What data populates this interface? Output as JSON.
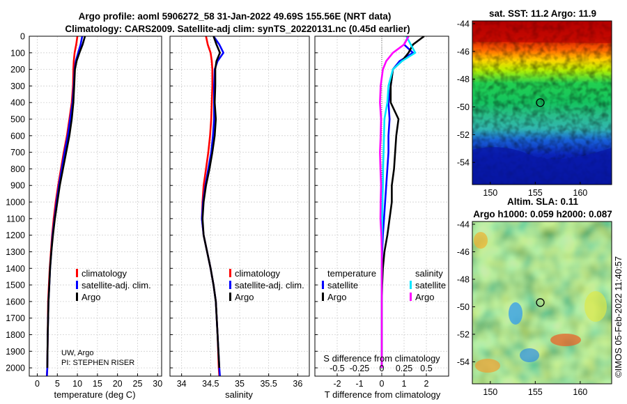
{
  "figure": {
    "title_line1": "Argo profile: aoml 5906272_58 31-Jan-2022 49.69S 155.56E (NRT data)",
    "title_line2": "Climatology: CARS2009. Satellite-adj clim: synTS_20220131.nc (0.45d earlier)",
    "institution": "UW, Argo",
    "pi": "PI: STEPHEN RISER",
    "credit": "©IMOS 05-Feb-2022 11:40:57"
  },
  "colors": {
    "climatology": "#ff0000",
    "satellite": "#0000ff",
    "argo": "#000000",
    "diff_temp_sat": "#0000ff",
    "diff_temp_argo": "#000000",
    "diff_sal_sat": "#00e5ff",
    "diff_sal_argo": "#ff00ff"
  },
  "chart_data": [
    {
      "type": "line",
      "id": "temperature",
      "xlabel": "temperature (deg C)",
      "ylabel": "depth",
      "xlim": [
        -2,
        31
      ],
      "ylim": [
        2050,
        0
      ],
      "xticks": [
        0,
        5,
        10,
        15,
        20,
        25,
        30
      ],
      "yticks": [
        0,
        100,
        200,
        300,
        400,
        500,
        600,
        700,
        800,
        900,
        1000,
        1100,
        1200,
        1300,
        1400,
        1500,
        1600,
        1700,
        1800,
        1900,
        2000
      ],
      "legend": [
        "climatology",
        "satellite-adj. clim.",
        "Argo"
      ],
      "series": [
        {
          "name": "climatology",
          "color": "#ff0000",
          "x": [
            10.0,
            9.7,
            9.3,
            9.1,
            9.0,
            8.9,
            8.6,
            8.0,
            7.4,
            6.6,
            5.9,
            5.2,
            4.6,
            4.1,
            3.7,
            3.4,
            3.1,
            2.9,
            2.7,
            2.6,
            2.5,
            2.4
          ],
          "y": [
            0,
            50,
            100,
            150,
            200,
            300,
            400,
            500,
            600,
            700,
            800,
            900,
            1000,
            1100,
            1200,
            1300,
            1400,
            1500,
            1600,
            1800,
            2000,
            2050
          ]
        },
        {
          "name": "satellite-adj. clim.",
          "color": "#0000ff",
          "x": [
            11.2,
            10.8,
            10.2,
            9.6,
            9.3,
            9.1,
            8.8,
            8.2,
            7.6,
            6.8,
            6.1,
            5.4,
            4.8,
            4.3,
            3.8,
            3.5,
            3.2,
            3.0,
            2.8,
            2.6,
            2.5,
            2.4
          ],
          "y": [
            0,
            50,
            100,
            150,
            200,
            300,
            400,
            500,
            600,
            700,
            800,
            900,
            1000,
            1100,
            1200,
            1300,
            1400,
            1500,
            1600,
            1800,
            2000,
            2050
          ]
        },
        {
          "name": "Argo",
          "color": "#000000",
          "x": [
            11.9,
            11.3,
            10.5,
            9.8,
            9.4,
            9.2,
            9.0,
            8.6,
            8.0,
            7.2,
            6.4,
            5.6,
            5.0,
            4.4,
            3.9,
            3.5,
            3.2,
            3.0,
            2.8,
            2.6,
            2.5
          ],
          "y": [
            0,
            50,
            100,
            150,
            200,
            300,
            400,
            500,
            600,
            700,
            800,
            900,
            1000,
            1100,
            1200,
            1300,
            1400,
            1500,
            1600,
            1800,
            2000
          ]
        }
      ]
    },
    {
      "type": "line",
      "id": "salinity",
      "xlabel": "salinity",
      "xlim": [
        33.8,
        36.2
      ],
      "ylim": [
        2050,
        0
      ],
      "xticks": [
        34,
        34.5,
        35,
        35.5,
        36
      ],
      "legend": [
        "climatology",
        "satellite-adj. clim.",
        "Argo"
      ],
      "series": [
        {
          "name": "climatology",
          "color": "#ff0000",
          "x": [
            34.42,
            34.45,
            34.5,
            34.52,
            34.53,
            34.53,
            34.52,
            34.51,
            34.49,
            34.46,
            34.42,
            34.38,
            34.36,
            34.35,
            34.38,
            34.44,
            34.5,
            34.55,
            34.59,
            34.62,
            34.64,
            34.65
          ],
          "y": [
            0,
            50,
            100,
            150,
            200,
            300,
            400,
            500,
            600,
            700,
            800,
            900,
            1000,
            1100,
            1200,
            1300,
            1400,
            1500,
            1600,
            1800,
            2000,
            2050
          ]
        },
        {
          "name": "satellite-adj. clim.",
          "color": "#0000ff",
          "x": [
            34.55,
            34.65,
            34.72,
            34.62,
            34.57,
            34.56,
            34.56,
            34.56,
            34.54,
            34.51,
            34.46,
            34.41,
            34.37,
            34.35,
            34.38,
            34.44,
            34.5,
            34.55,
            34.59,
            34.62,
            34.65,
            34.66
          ],
          "y": [
            0,
            50,
            100,
            150,
            200,
            300,
            400,
            500,
            600,
            700,
            800,
            900,
            1000,
            1100,
            1200,
            1300,
            1400,
            1500,
            1600,
            1800,
            2000,
            2050
          ]
        },
        {
          "name": "Argo",
          "color": "#000000",
          "x": [
            34.55,
            34.6,
            34.66,
            34.6,
            34.58,
            34.58,
            34.57,
            34.59,
            34.57,
            34.53,
            34.48,
            34.42,
            34.38,
            34.36,
            34.38,
            34.44,
            34.5,
            34.55,
            34.59,
            34.62,
            34.65
          ],
          "y": [
            0,
            50,
            100,
            150,
            200,
            300,
            400,
            500,
            600,
            700,
            800,
            900,
            1000,
            1100,
            1200,
            1300,
            1400,
            1500,
            1600,
            1800,
            2000
          ]
        }
      ]
    },
    {
      "type": "line",
      "id": "difference",
      "xlabel": "T difference from climatology",
      "xlabel_top": "S difference from climatology",
      "xlim": [
        -3,
        3
      ],
      "ylim": [
        2050,
        0
      ],
      "xticks": [
        -2,
        -1,
        0,
        1,
        2
      ],
      "xtick_labels": [
        "-2",
        "-1",
        "0",
        "1",
        "2"
      ],
      "s_tick_labels": [
        "-0.5",
        "-0.25",
        "0",
        "0.25",
        "0.5"
      ],
      "legend_temperature_title": "temperature",
      "legend_salinity_title": "salinity",
      "legend_temperature": [
        "satellite",
        "Argo"
      ],
      "legend_salinity": [
        "satellite",
        "Argo"
      ],
      "series": [
        {
          "name": "temperature satellite",
          "color": "#0000ff",
          "x": [
            1.2,
            1.0,
            1.4,
            0.8,
            0.5,
            0.4,
            0.3,
            0.35,
            0.3,
            0.3,
            0.25,
            0.2,
            0.15,
            0.1,
            0.05,
            0.02,
            0.0,
            0.0,
            0.0,
            0.0,
            0.0
          ],
          "y": [
            0,
            50,
            100,
            150,
            200,
            300,
            400,
            500,
            600,
            700,
            800,
            900,
            1000,
            1100,
            1200,
            1300,
            1400,
            1500,
            1600,
            1800,
            2000
          ]
        },
        {
          "name": "temperature Argo",
          "color": "#000000",
          "x": [
            1.9,
            1.4,
            1.2,
            0.9,
            0.5,
            0.4,
            0.4,
            0.75,
            0.65,
            0.6,
            0.55,
            0.45,
            0.45,
            0.35,
            0.25,
            0.12,
            0.05,
            0.02,
            0.0,
            0.0,
            0.0
          ],
          "y": [
            0,
            50,
            100,
            150,
            200,
            300,
            400,
            500,
            600,
            700,
            800,
            900,
            1000,
            1100,
            1200,
            1300,
            1400,
            1500,
            1600,
            1800,
            2000
          ]
        },
        {
          "name": "salinity satellite",
          "color": "#00e5ff",
          "x": [
            1.1,
            1.3,
            1.5,
            0.9,
            0.5,
            0.3,
            0.25,
            0.12,
            0.1,
            0.08,
            0.06,
            0.05,
            0.03,
            0.02,
            0.01,
            0.0,
            0.0,
            0.0,
            0.0,
            0.0,
            0.0
          ],
          "y": [
            0,
            50,
            100,
            150,
            200,
            300,
            400,
            500,
            600,
            700,
            800,
            900,
            1000,
            1100,
            1200,
            1300,
            1400,
            1500,
            1600,
            1800,
            2000
          ]
        },
        {
          "name": "salinity Argo",
          "color": "#ff00ff",
          "x": [
            1.2,
            1.0,
            0.5,
            0.2,
            0.05,
            -0.05,
            -0.08,
            -0.03,
            -0.05,
            -0.08,
            -0.06,
            -0.03,
            -0.05,
            -0.06,
            -0.02,
            0.0,
            0.0,
            0.0,
            0.0,
            0.0,
            0.0
          ],
          "y": [
            0,
            50,
            100,
            150,
            200,
            300,
            400,
            500,
            600,
            700,
            800,
            900,
            1000,
            1100,
            1200,
            1300,
            1400,
            1500,
            1600,
            1800,
            2000
          ]
        }
      ]
    },
    {
      "type": "heatmap",
      "id": "sst_map",
      "title": "sat. SST: 11.2 Argo: 11.9",
      "xlim": [
        148,
        163.5
      ],
      "ylim": [
        -55.6,
        -43.8
      ],
      "xticks": [
        150,
        155,
        160
      ],
      "yticks": [
        -44,
        -46,
        -48,
        -50,
        -52,
        -54
      ],
      "marker": {
        "lon": 155.56,
        "lat": -49.69
      }
    },
    {
      "type": "heatmap",
      "id": "sla_map",
      "title_line1": "Altim. SLA: 0.11",
      "title_line2": "Argo h1000: 0.059 h2000: 0.087",
      "xlim": [
        148,
        163.5
      ],
      "ylim": [
        -55.6,
        -43.8
      ],
      "xticks": [
        150,
        155,
        160
      ],
      "yticks": [
        -44,
        -46,
        -48,
        -50,
        -52,
        -54
      ],
      "marker": {
        "lon": 155.56,
        "lat": -49.69
      }
    }
  ]
}
